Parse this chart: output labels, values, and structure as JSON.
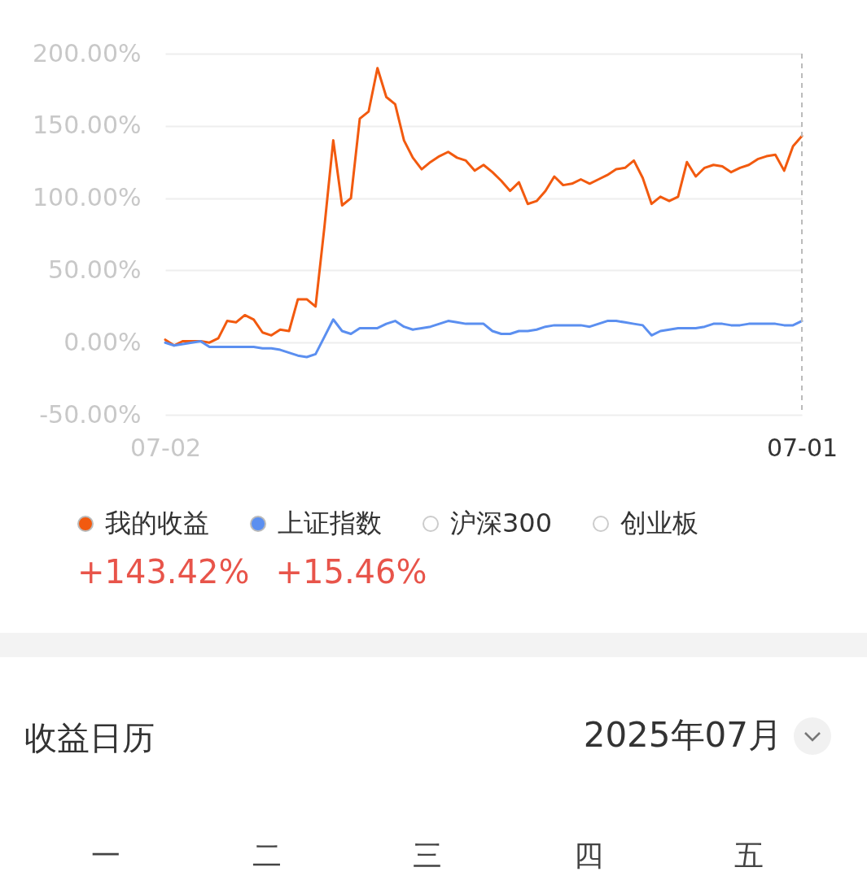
{
  "chart_data": [
    {
      "type": "line",
      "categories": [
        "07-02",
        null,
        null,
        null,
        null,
        null,
        null,
        null,
        null,
        null,
        null,
        null,
        null,
        null,
        null,
        null,
        null,
        null,
        null,
        null,
        null,
        null,
        null,
        null,
        null,
        null,
        null,
        null,
        null,
        null,
        null,
        null,
        null,
        null,
        null,
        null,
        null,
        null,
        null,
        null,
        null,
        null,
        null,
        null,
        null,
        null,
        null,
        null,
        null,
        null,
        null,
        null,
        null,
        null,
        null,
        null,
        null,
        null,
        null,
        null,
        null,
        null,
        null,
        null,
        null,
        null,
        null,
        null,
        null,
        null,
        null,
        null,
        "07-01"
      ],
      "ylim": [
        -50,
        200
      ],
      "yticks": [
        {
          "value": -50,
          "label": "-50.00%"
        },
        {
          "value": 0,
          "label": "0.00%"
        },
        {
          "value": 50,
          "label": "50.00%"
        },
        {
          "value": 100,
          "label": "100.00%"
        },
        {
          "value": 150,
          "label": "150.00%"
        },
        {
          "value": 200,
          "label": "200.00%"
        }
      ],
      "grid": "y",
      "legend": "bottom",
      "series": [
        {
          "name": "我的收益",
          "color": "#f25a0f",
          "values": [
            2,
            -2,
            1,
            1,
            1,
            0,
            3,
            15,
            14,
            19,
            16,
            7,
            5,
            9,
            8,
            30,
            30,
            25,
            80,
            140,
            95,
            100,
            155,
            160,
            190,
            170,
            165,
            140,
            128,
            120,
            125,
            129,
            132,
            128,
            126,
            119,
            123,
            118,
            112,
            105,
            111,
            96,
            98,
            105,
            115,
            109,
            110,
            113,
            110,
            113,
            116,
            120,
            121,
            126,
            114,
            96,
            101,
            98,
            101,
            125,
            115,
            121,
            123,
            122,
            118,
            121,
            123,
            127,
            129,
            130,
            119,
            136,
            143
          ]
        },
        {
          "name": "上证指数",
          "color": "#5b8ff0",
          "values": [
            0,
            -2,
            -1,
            0,
            1,
            -3,
            -3,
            -3,
            -3,
            -3,
            -3,
            -4,
            -4,
            -5,
            -7,
            -9,
            -10,
            -8,
            4,
            16,
            8,
            6,
            10,
            10,
            10,
            13,
            15,
            11,
            9,
            10,
            11,
            13,
            15,
            14,
            13,
            13,
            13,
            8,
            6,
            6,
            8,
            8,
            9,
            11,
            12,
            12,
            12,
            12,
            11,
            13,
            15,
            15,
            14,
            13,
            12,
            5,
            8,
            9,
            10,
            10,
            10,
            11,
            13,
            13,
            12,
            12,
            13,
            13,
            13,
            13,
            12,
            12,
            15
          ]
        },
        {
          "name": "沪深300",
          "color": "#cccccc",
          "values": [
            null,
            null,
            null,
            null,
            null,
            null,
            null,
            null,
            null,
            null,
            null,
            null,
            null,
            null,
            null,
            null,
            null,
            null,
            null,
            null,
            null,
            null,
            null,
            null,
            null,
            null,
            null,
            null,
            null,
            null,
            null,
            null,
            null,
            null,
            null,
            null,
            null,
            null,
            null,
            null,
            null,
            null,
            null,
            null,
            null,
            null,
            null,
            null,
            null,
            null,
            null,
            null,
            null,
            null,
            null,
            null,
            null,
            null,
            null,
            null,
            null,
            null,
            null,
            null,
            null,
            null,
            null,
            null,
            null,
            null,
            null,
            null,
            null
          ]
        },
        {
          "name": "创业板",
          "color": "#cccccc",
          "values": [
            null,
            null,
            null,
            null,
            null,
            null,
            null,
            null,
            null,
            null,
            null,
            null,
            null,
            null,
            null,
            null,
            null,
            null,
            null,
            null,
            null,
            null,
            null,
            null,
            null,
            null,
            null,
            null,
            null,
            null,
            null,
            null,
            null,
            null,
            null,
            null,
            null,
            null,
            null,
            null,
            null,
            null,
            null,
            null,
            null,
            null,
            null,
            null,
            null,
            null,
            null,
            null,
            null,
            null,
            null,
            null,
            null,
            null,
            null,
            null,
            null,
            null,
            null,
            null,
            null,
            null,
            null,
            null,
            null,
            null,
            null,
            null,
            null
          ]
        }
      ],
      "ref_lines": [
        {
          "axis": "x",
          "value": "07-01",
          "color": "#bbbbbb",
          "line_style": "dashed"
        }
      ],
      "annotations": [
        "+143.42%",
        "+15.46%"
      ]
    },
    {
      "type": "other",
      "title": "收益日历",
      "annotations": [
        "2025年07月",
        "一",
        "二",
        "三",
        "四",
        "五"
      ]
    }
  ]
}
